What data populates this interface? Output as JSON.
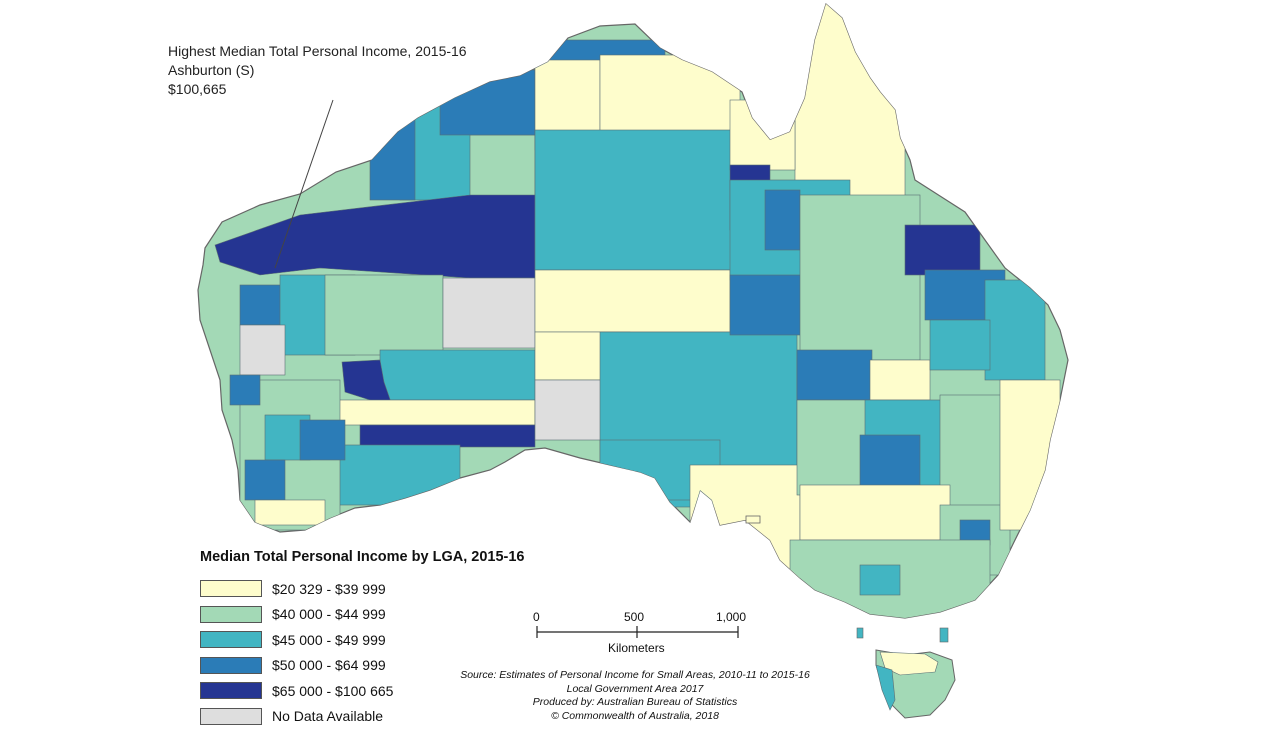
{
  "callout": {
    "title": "Highest Median Total Personal Income, 2015-16",
    "lga": "Ashburton (S)",
    "value": "$100,665"
  },
  "legend": {
    "title": "Median Total Personal Income by LGA, 2015-16",
    "items": [
      {
        "label": "$20 329 - $39 999",
        "color": "#fefdcc"
      },
      {
        "label": "$40 000 - $44 999",
        "color": "#a3d9b6"
      },
      {
        "label": "$45 000 - $49 999",
        "color": "#42b5c2"
      },
      {
        "label": "$50 000 - $64 999",
        "color": "#2b7cb7"
      },
      {
        "label": "$65 000 - $100 665",
        "color": "#253592"
      },
      {
        "label": "No Data Available",
        "color": "#dedede"
      }
    ]
  },
  "scale": {
    "labels": [
      "0",
      "500",
      "1,000"
    ],
    "unit": "Kilometers"
  },
  "source": {
    "line1": "Source: Estimates of Personal Income for Small Areas, 2010-11 to 2015-16",
    "line2": "Local Government Area 2017",
    "line3": "Produced by: Australian Bureau of Statistics",
    "line4": "© Commonwealth of Australia, 2018"
  }
}
